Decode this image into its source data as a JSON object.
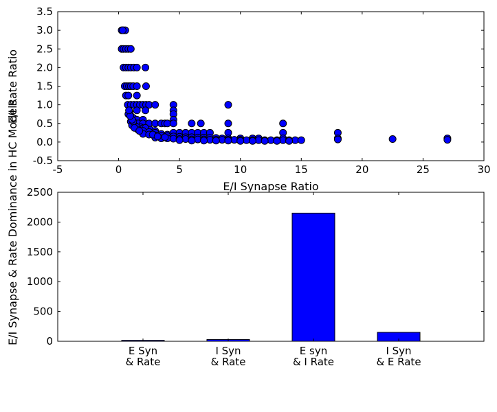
{
  "figure_ylabel": "E/I Synapse & Rate Dominance in HC Models",
  "colors": {
    "marker": "#0000ff",
    "bar": "#0000ff",
    "edge": "#000000"
  },
  "chart_data": [
    {
      "type": "scatter",
      "xlabel": "E/I Synapse Ratio",
      "ylabel": "E/I Rate Ratio",
      "xlim": [
        -5,
        30
      ],
      "ylim": [
        -0.5,
        3.5
      ],
      "xticks": [
        "-5",
        "0",
        "5",
        "10",
        "15",
        "20",
        "25",
        "30"
      ],
      "yticks": [
        "-0.5",
        "0.0",
        "0.5",
        "1.0",
        "1.5",
        "2.0",
        "2.5",
        "3.0",
        "3.5"
      ],
      "grid": false,
      "points": [
        [
          0.25,
          3.0
        ],
        [
          0.4,
          3.0
        ],
        [
          0.55,
          3.0
        ],
        [
          0.33,
          3.0
        ],
        [
          0.25,
          2.5
        ],
        [
          0.4,
          2.5
        ],
        [
          0.6,
          2.5
        ],
        [
          0.8,
          2.5
        ],
        [
          1.0,
          2.5
        ],
        [
          0.4,
          2.0
        ],
        [
          0.6,
          2.0
        ],
        [
          0.8,
          2.0
        ],
        [
          1.0,
          2.0
        ],
        [
          1.25,
          2.0
        ],
        [
          1.5,
          2.0
        ],
        [
          2.2,
          2.0
        ],
        [
          0.5,
          1.5
        ],
        [
          0.67,
          1.5
        ],
        [
          0.85,
          1.5
        ],
        [
          1.0,
          1.5
        ],
        [
          1.2,
          1.5
        ],
        [
          1.5,
          1.5
        ],
        [
          2.25,
          1.5
        ],
        [
          0.6,
          1.25
        ],
        [
          0.8,
          1.25
        ],
        [
          1.5,
          1.25
        ],
        [
          0.75,
          1.0
        ],
        [
          1.0,
          1.0
        ],
        [
          1.25,
          1.0
        ],
        [
          1.5,
          1.0
        ],
        [
          1.75,
          1.0
        ],
        [
          2.0,
          1.0
        ],
        [
          2.25,
          1.0
        ],
        [
          2.5,
          1.0
        ],
        [
          3.0,
          1.0
        ],
        [
          4.5,
          1.0
        ],
        [
          9.0,
          1.0
        ],
        [
          0.9,
          0.8
        ],
        [
          1.5,
          0.85
        ],
        [
          2.2,
          0.85
        ],
        [
          4.5,
          0.85
        ],
        [
          0.8,
          0.75
        ],
        [
          1.0,
          0.7
        ],
        [
          1.2,
          0.65
        ],
        [
          1.5,
          0.6
        ],
        [
          2.0,
          0.6
        ],
        [
          4.5,
          0.75
        ],
        [
          4.5,
          0.6
        ],
        [
          1.0,
          0.55
        ],
        [
          1.3,
          0.5
        ],
        [
          1.6,
          0.5
        ],
        [
          2.0,
          0.5
        ],
        [
          2.5,
          0.5
        ],
        [
          3.0,
          0.5
        ],
        [
          3.5,
          0.5
        ],
        [
          3.8,
          0.5
        ],
        [
          4.0,
          0.5
        ],
        [
          4.5,
          0.5
        ],
        [
          6.0,
          0.5
        ],
        [
          6.75,
          0.5
        ],
        [
          9.0,
          0.5
        ],
        [
          13.5,
          0.5
        ],
        [
          1.1,
          0.45
        ],
        [
          1.4,
          0.42
        ],
        [
          1.8,
          0.4
        ],
        [
          2.0,
          0.37
        ],
        [
          2.3,
          0.35
        ],
        [
          2.6,
          0.33
        ],
        [
          3.0,
          0.3
        ],
        [
          1.5,
          0.4
        ],
        [
          2.2,
          0.38
        ],
        [
          1.6,
          0.33
        ],
        [
          2.0,
          0.3
        ],
        [
          2.5,
          0.27
        ],
        [
          3.0,
          0.25
        ],
        [
          3.5,
          0.22
        ],
        [
          4.0,
          0.2
        ],
        [
          4.5,
          0.25
        ],
        [
          5.0,
          0.25
        ],
        [
          5.5,
          0.25
        ],
        [
          6.0,
          0.25
        ],
        [
          6.5,
          0.25
        ],
        [
          7.0,
          0.25
        ],
        [
          7.5,
          0.25
        ],
        [
          9.0,
          0.25
        ],
        [
          13.5,
          0.25
        ],
        [
          18.0,
          0.25
        ],
        [
          2.0,
          0.22
        ],
        [
          2.5,
          0.2
        ],
        [
          3.0,
          0.18
        ],
        [
          3.5,
          0.17
        ],
        [
          4.0,
          0.16
        ],
        [
          4.5,
          0.15
        ],
        [
          5.0,
          0.14
        ],
        [
          5.5,
          0.13
        ],
        [
          6.0,
          0.13
        ],
        [
          6.5,
          0.12
        ],
        [
          7.0,
          0.12
        ],
        [
          7.5,
          0.11
        ],
        [
          8.0,
          0.11
        ],
        [
          8.5,
          0.1
        ],
        [
          9.0,
          0.1
        ],
        [
          10.0,
          0.1
        ],
        [
          11.0,
          0.1
        ],
        [
          11.5,
          0.1
        ],
        [
          13.5,
          0.1
        ],
        [
          18.0,
          0.1
        ],
        [
          27.0,
          0.1
        ],
        [
          3.0,
          0.12
        ],
        [
          3.5,
          0.1
        ],
        [
          4.0,
          0.1
        ],
        [
          4.5,
          0.09
        ],
        [
          5.0,
          0.08
        ],
        [
          5.5,
          0.08
        ],
        [
          6.0,
          0.07
        ],
        [
          6.5,
          0.07
        ],
        [
          7.0,
          0.07
        ],
        [
          7.5,
          0.06
        ],
        [
          8.0,
          0.06
        ],
        [
          8.5,
          0.06
        ],
        [
          9.0,
          0.06
        ],
        [
          9.5,
          0.06
        ],
        [
          10.0,
          0.06
        ],
        [
          10.5,
          0.05
        ],
        [
          11.0,
          0.05
        ],
        [
          11.5,
          0.05
        ],
        [
          12.0,
          0.05
        ],
        [
          12.5,
          0.05
        ],
        [
          13.0,
          0.05
        ],
        [
          13.5,
          0.05
        ],
        [
          14.0,
          0.05
        ],
        [
          14.5,
          0.05
        ],
        [
          15.0,
          0.05
        ],
        [
          18.0,
          0.07
        ],
        [
          22.5,
          0.08
        ],
        [
          27.0,
          0.06
        ],
        [
          5.0,
          0.05
        ],
        [
          6.0,
          0.04
        ],
        [
          7.0,
          0.04
        ],
        [
          8.0,
          0.04
        ],
        [
          9.0,
          0.04
        ],
        [
          10.0,
          0.03
        ],
        [
          11.0,
          0.03
        ],
        [
          12.0,
          0.03
        ],
        [
          13.0,
          0.03
        ],
        [
          14.0,
          0.03
        ],
        [
          1.2,
          0.55
        ],
        [
          1.1,
          0.6
        ],
        [
          0.95,
          0.7
        ],
        [
          0.85,
          0.85
        ],
        [
          1.3,
          0.38
        ],
        [
          1.7,
          0.3
        ],
        [
          2.8,
          0.2
        ],
        [
          3.2,
          0.15
        ],
        [
          3.8,
          0.13
        ]
      ]
    },
    {
      "type": "bar",
      "categories": [
        "E Syn\n& Rate",
        "I Syn\n& Rate",
        "E syn\n& I Rate",
        "I Syn\n& E Rate"
      ],
      "values": [
        15,
        30,
        2150,
        150
      ],
      "ylim": [
        0,
        2500
      ],
      "yticks": [
        "0",
        "500",
        "1000",
        "1500",
        "2000",
        "2500"
      ],
      "xlim": [
        -1,
        4
      ],
      "grid": false
    }
  ]
}
